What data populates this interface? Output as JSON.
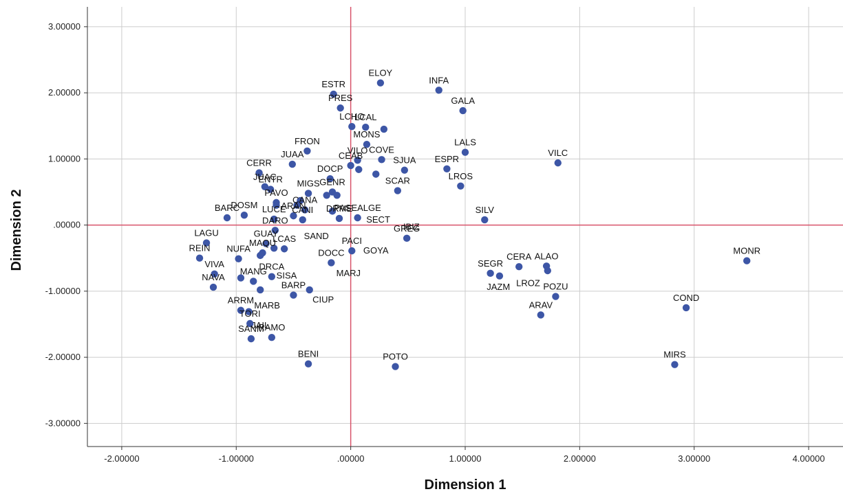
{
  "chart_data": {
    "type": "scatter",
    "xlabel": "Dimension 1",
    "ylabel": "Dimension 2",
    "xlim": [
      -2.3,
      4.3
    ],
    "ylim": [
      -3.35,
      3.3
    ],
    "xticks": [
      -2,
      -1,
      0,
      1,
      2,
      3,
      4
    ],
    "yticks": [
      -3,
      -2,
      -1,
      0,
      1,
      2,
      3
    ],
    "xtick_labels": [
      "-2.00000",
      "-1.00000",
      ".00000",
      "1.00000",
      "2.00000",
      "3.00000",
      "4.00000"
    ],
    "ytick_labels": [
      "-3.00000",
      "-2.00000",
      "-1.00000",
      ".00000",
      "1.00000",
      "2.00000",
      "3.00000"
    ],
    "grid": true,
    "reference_lines": {
      "x": 0,
      "y": 0
    },
    "colors": {
      "point": "#3d56a6",
      "reference": "#d9536a",
      "grid": "#cccccc",
      "axis": "#333333"
    },
    "points": [
      {
        "label": "ELOY",
        "x": 0.26,
        "y": 2.15
      },
      {
        "label": "INFA",
        "x": 0.77,
        "y": 2.04
      },
      {
        "label": "ESTR",
        "x": -0.15,
        "y": 1.98
      },
      {
        "label": "PRES",
        "x": -0.09,
        "y": 1.77
      },
      {
        "label": "GALA",
        "x": 0.98,
        "y": 1.73
      },
      {
        "label": "LCHO",
        "x": 0.01,
        "y": 1.49
      },
      {
        "label": "LCAL",
        "x": 0.13,
        "y": 1.48
      },
      {
        "label": "",
        "x": 0.29,
        "y": 1.45
      },
      {
        "label": "MONS",
        "x": 0.14,
        "y": 1.22
      },
      {
        "label": "FRON",
        "x": -0.38,
        "y": 1.12
      },
      {
        "label": "LALS",
        "x": 1.0,
        "y": 1.1
      },
      {
        "label": "VILO",
        "x": 0.06,
        "y": 0.98
      },
      {
        "label": "COVE",
        "x": 0.27,
        "y": 0.99
      },
      {
        "label": "VILC",
        "x": 1.81,
        "y": 0.94
      },
      {
        "label": "JUAA",
        "x": -0.51,
        "y": 0.92
      },
      {
        "label": "CEAB",
        "x": 0.0,
        "y": 0.9
      },
      {
        "label": "ESPR",
        "x": 0.84,
        "y": 0.85
      },
      {
        "label": "SJUA",
        "x": 0.47,
        "y": 0.83
      },
      {
        "label": "",
        "x": 0.07,
        "y": 0.84
      },
      {
        "label": "CERR",
        "x": -0.8,
        "y": 0.79
      },
      {
        "label": "",
        "x": 0.22,
        "y": 0.77
      },
      {
        "label": "DOCP",
        "x": -0.18,
        "y": 0.7
      },
      {
        "label": "LROS",
        "x": 0.96,
        "y": 0.59
      },
      {
        "label": "JUAC",
        "x": -0.75,
        "y": 0.58
      },
      {
        "label": "ENTR",
        "x": -0.7,
        "y": 0.54
      },
      {
        "label": "SCAR",
        "x": 0.41,
        "y": 0.52
      },
      {
        "label": "GENR",
        "x": -0.16,
        "y": 0.5
      },
      {
        "label": "MIGS",
        "x": -0.37,
        "y": 0.48
      },
      {
        "label": "",
        "x": -0.21,
        "y": 0.45
      },
      {
        "label": "",
        "x": -0.12,
        "y": 0.45
      },
      {
        "label": "",
        "x": -0.44,
        "y": 0.37
      },
      {
        "label": "PAVO",
        "x": -0.65,
        "y": 0.34
      },
      {
        "label": "",
        "x": -0.65,
        "y": 0.3
      },
      {
        "label": "",
        "x": -0.47,
        "y": 0.3
      },
      {
        "label": "CANA",
        "x": -0.4,
        "y": 0.23
      },
      {
        "label": "DOSM",
        "x": -0.93,
        "y": 0.15
      },
      {
        "label": "ARAN",
        "x": -0.5,
        "y": 0.14
      },
      {
        "label": "",
        "x": -0.16,
        "y": 0.21
      },
      {
        "label": "PASEALGE",
        "x": 0.06,
        "y": 0.11
      },
      {
        "label": "DRME",
        "x": -0.1,
        "y": 0.1
      },
      {
        "label": "BARC",
        "x": -1.08,
        "y": 0.11
      },
      {
        "label": "LUCE",
        "x": -0.67,
        "y": 0.09
      },
      {
        "label": "CANI",
        "x": -0.42,
        "y": 0.08
      },
      {
        "label": "SILV",
        "x": 1.17,
        "y": 0.08
      },
      {
        "label": "DARO",
        "x": -0.66,
        "y": -0.08
      },
      {
        "label": "GREG",
        "x": 0.49,
        "y": -0.2
      },
      {
        "label": "LAGU",
        "x": -1.26,
        "y": -0.27
      },
      {
        "label": "GUAY",
        "x": -0.74,
        "y": -0.28
      },
      {
        "label": "LCAS",
        "x": -0.58,
        "y": -0.36
      },
      {
        "label": "",
        "x": -0.67,
        "y": -0.35
      },
      {
        "label": "PACI",
        "x": 0.01,
        "y": -0.39
      },
      {
        "label": "MAQU",
        "x": -0.77,
        "y": -0.42
      },
      {
        "label": "",
        "x": -0.79,
        "y": -0.46
      },
      {
        "label": "REIN",
        "x": -1.32,
        "y": -0.5
      },
      {
        "label": "NUFA",
        "x": -0.98,
        "y": -0.51
      },
      {
        "label": "DOCC",
        "x": -0.17,
        "y": -0.57
      },
      {
        "label": "MONR",
        "x": 3.46,
        "y": -0.54
      },
      {
        "label": "CERA",
        "x": 1.47,
        "y": -0.63
      },
      {
        "label": "ALAO",
        "x": 1.71,
        "y": -0.62
      },
      {
        "label": "",
        "x": 1.72,
        "y": -0.69
      },
      {
        "label": "SEGR",
        "x": 1.22,
        "y": -0.73
      },
      {
        "label": "",
        "x": 1.3,
        "y": -0.77
      },
      {
        "label": "VIVA",
        "x": -1.19,
        "y": -0.74
      },
      {
        "label": "",
        "x": -0.96,
        "y": -0.8
      },
      {
        "label": "DRCA",
        "x": -0.69,
        "y": -0.78
      },
      {
        "label": "MANG",
        "x": -0.85,
        "y": -0.85
      },
      {
        "label": "NAVA",
        "x": -1.2,
        "y": -0.94
      },
      {
        "label": "",
        "x": -0.79,
        "y": -0.98
      },
      {
        "label": "",
        "x": -0.36,
        "y": -0.98
      },
      {
        "label": "BARP",
        "x": -0.5,
        "y": -1.06
      },
      {
        "label": "POZU",
        "x": 1.79,
        "y": -1.08
      },
      {
        "label": "ARRM",
        "x": -0.96,
        "y": -1.29
      },
      {
        "label": "",
        "x": -0.89,
        "y": -1.31
      },
      {
        "label": "COND",
        "x": 2.93,
        "y": -1.25
      },
      {
        "label": "ARAV",
        "x": 1.66,
        "y": -1.36
      },
      {
        "label": "TORI",
        "x": -0.88,
        "y": -1.49
      },
      {
        "label": "SANM",
        "x": -0.87,
        "y": -1.72
      },
      {
        "label": "RAMO",
        "x": -0.69,
        "y": -1.7
      },
      {
        "label": "BENI",
        "x": -0.37,
        "y": -2.1
      },
      {
        "label": "POTO",
        "x": 0.39,
        "y": -2.14
      },
      {
        "label": "MIRS",
        "x": 2.83,
        "y": -2.11
      }
    ],
    "free_labels": [
      {
        "text": "JAZM",
        "x": 1.29,
        "y": -0.94
      },
      {
        "text": "LROZ",
        "x": 1.55,
        "y": -0.88
      },
      {
        "text": "GOYA",
        "x": 0.22,
        "y": -0.39
      },
      {
        "text": "MARJ",
        "x": -0.02,
        "y": -0.73
      },
      {
        "text": "SAND",
        "x": -0.3,
        "y": -0.17
      },
      {
        "text": "SECT",
        "x": 0.24,
        "y": 0.08
      },
      {
        "text": "IBIZ",
        "x": 0.53,
        "y": -0.03
      },
      {
        "text": "SISA",
        "x": -0.56,
        "y": -0.77
      },
      {
        "text": "CIUP",
        "x": -0.24,
        "y": -1.13
      },
      {
        "text": "MARB",
        "x": -0.73,
        "y": -1.22
      },
      {
        "text": "JAIL",
        "x": -0.79,
        "y": -1.52
      }
    ]
  }
}
